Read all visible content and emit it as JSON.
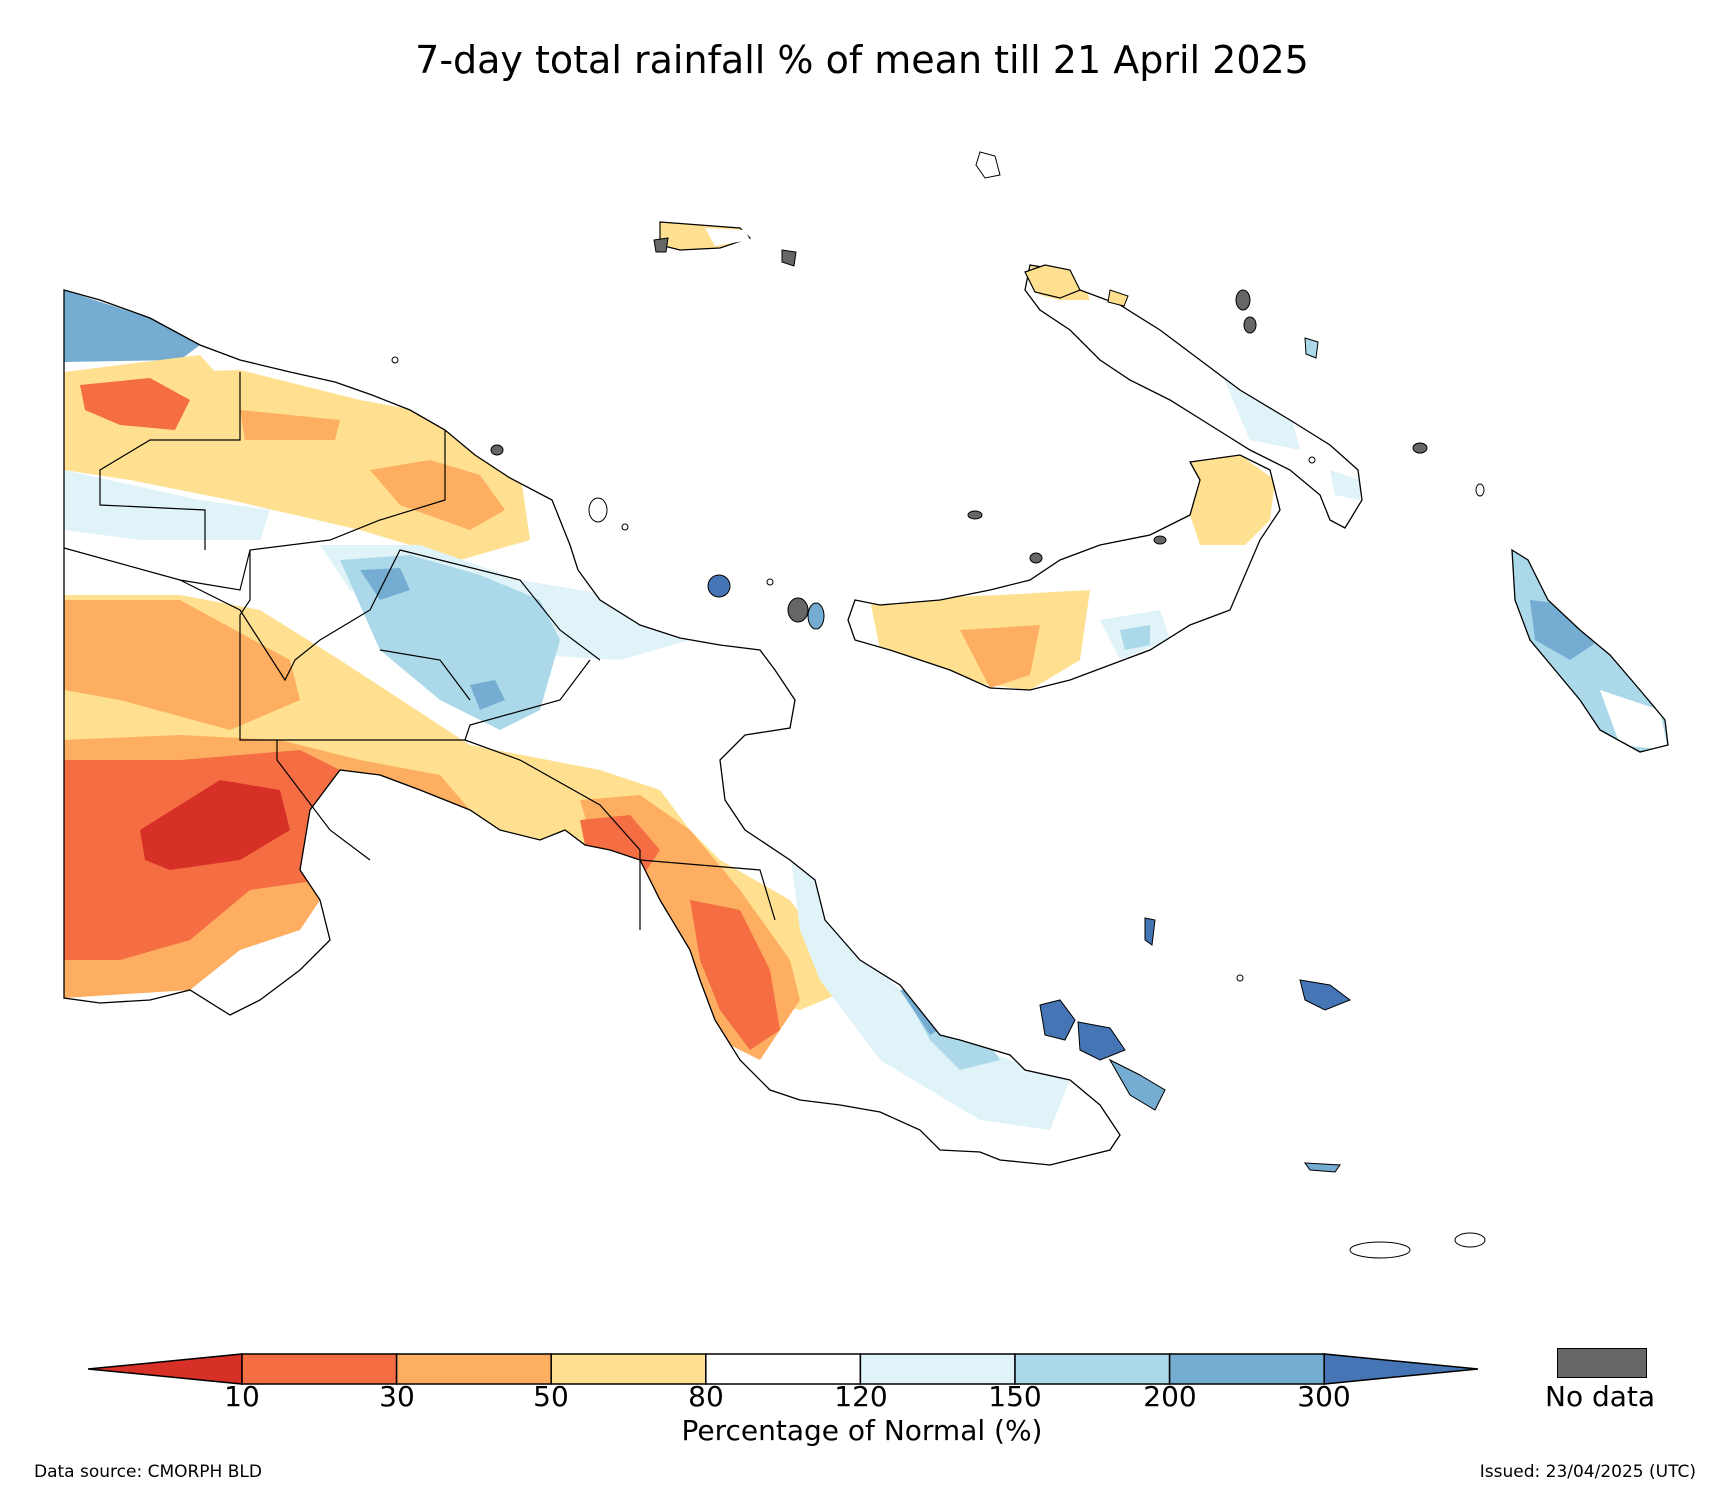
{
  "title": "7-day total rainfall % of mean till 21 April 2025",
  "legend": {
    "title": "Percentage of Normal (%)",
    "tick_labels": [
      "10",
      "30",
      "50",
      "80",
      "120",
      "150",
      "200",
      "300"
    ],
    "colors": {
      "lt10": "#d73027",
      "10-30": "#f46d43",
      "30-50": "#fdae61",
      "50-80": "#fee090",
      "80-120": "#ffffff",
      "120-150": "#e0f3f8",
      "150-200": "#abd9e9",
      "200-300": "#74add1",
      "gt300": "#4575b4"
    },
    "no_data_label": "No data",
    "no_data_color": "#666666"
  },
  "footer": {
    "source": "Data source: CMORPH BLD",
    "issued": "Issued: 23/04/2025 (UTC)"
  }
}
